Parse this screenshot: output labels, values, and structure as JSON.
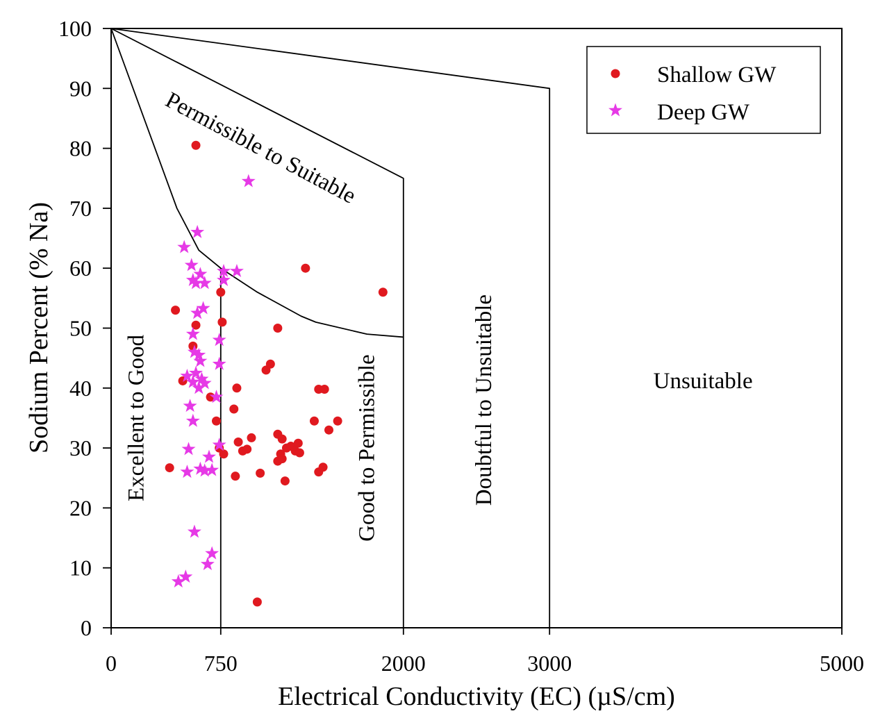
{
  "chart_data": {
    "type": "scatter",
    "title": "",
    "xlabel": "Electrical Conductivity (EC) (µS/cm)",
    "ylabel": "Sodium Percent (% Na)",
    "xlim": [
      0,
      5000
    ],
    "ylim": [
      0,
      100
    ],
    "x_ticks": [
      0,
      750,
      2000,
      3000,
      5000
    ],
    "x_tick_labels": [
      "0",
      "750",
      "2000",
      "3000",
      "5000"
    ],
    "y_ticks": [
      0,
      10,
      20,
      30,
      40,
      50,
      60,
      70,
      80,
      90,
      100
    ],
    "y_tick_labels": [
      "0",
      "10",
      "20",
      "30",
      "40",
      "50",
      "60",
      "70",
      "80",
      "90",
      "100"
    ],
    "grid": false,
    "legend_position": "top-right",
    "colors": {
      "shallow": "#e0191f",
      "deep": "#e639e6",
      "line": "#000000"
    },
    "boundaries": [
      {
        "name": "excellent-to-good-boundary",
        "points": [
          [
            0,
            100
          ],
          [
            150,
            90
          ],
          [
            300,
            80
          ],
          [
            450,
            70
          ],
          [
            600,
            63
          ],
          [
            750,
            60
          ],
          [
            1000,
            56
          ],
          [
            1300,
            52
          ],
          [
            1400,
            51
          ],
          [
            1750,
            49
          ],
          [
            2000,
            48.5
          ]
        ]
      },
      {
        "name": "good-to-permissible-boundary",
        "points": [
          [
            0,
            100
          ],
          [
            2000,
            75
          ],
          [
            2000,
            0
          ]
        ]
      },
      {
        "name": "permissible-to-doubtful-boundary",
        "points": [
          [
            0,
            100
          ],
          [
            3000,
            90
          ],
          [
            3000,
            0
          ]
        ]
      },
      {
        "name": "vertical-750-boundary",
        "points": [
          [
            750,
            60
          ],
          [
            750,
            0
          ]
        ]
      }
    ],
    "regions": [
      {
        "label": "Excellent to Good",
        "x": 220,
        "y": 35,
        "rotate": -90
      },
      {
        "label": "Good to Permissible",
        "x": 1800,
        "y": 30,
        "rotate": -90
      },
      {
        "label": "Permissible to Suitable",
        "x": 1000,
        "y": 79,
        "rotate": 28
      },
      {
        "label": "Doubtful to Unsuitable",
        "x": 2600,
        "y": 38,
        "rotate": -90
      },
      {
        "label": "Unsuitable",
        "x": 4050,
        "y": 40,
        "rotate": 0
      }
    ],
    "series": [
      {
        "name": "Shallow GW",
        "marker": "circle",
        "points": [
          [
            580,
            80.5
          ],
          [
            440,
            53
          ],
          [
            400,
            26.7
          ],
          [
            490,
            41.2
          ],
          [
            580,
            50.5
          ],
          [
            560,
            47
          ],
          [
            680,
            38.5
          ],
          [
            720,
            34.5
          ],
          [
            740,
            30
          ],
          [
            770,
            29
          ],
          [
            750,
            56
          ],
          [
            760,
            51
          ],
          [
            860,
            40
          ],
          [
            840,
            36.5
          ],
          [
            870,
            31
          ],
          [
            900,
            29.5
          ],
          [
            930,
            29.8
          ],
          [
            960,
            31.7
          ],
          [
            850,
            25.3
          ],
          [
            1000,
            4.3
          ],
          [
            1020,
            25.8
          ],
          [
            1060,
            43
          ],
          [
            1090,
            44
          ],
          [
            1140,
            50
          ],
          [
            1140,
            32.3
          ],
          [
            1170,
            31.5
          ],
          [
            1160,
            29
          ],
          [
            1140,
            27.8
          ],
          [
            1170,
            28.2
          ],
          [
            1190,
            24.5
          ],
          [
            1200,
            30
          ],
          [
            1230,
            30.3
          ],
          [
            1260,
            29.5
          ],
          [
            1280,
            30.8
          ],
          [
            1290,
            29.2
          ],
          [
            1330,
            60
          ],
          [
            1390,
            34.5
          ],
          [
            1420,
            39.8
          ],
          [
            1460,
            39.8
          ],
          [
            1420,
            26
          ],
          [
            1450,
            26.8
          ],
          [
            1490,
            33
          ],
          [
            1550,
            34.5
          ],
          [
            1860,
            56
          ]
        ]
      },
      {
        "name": "Deep GW",
        "marker": "star",
        "points": [
          [
            500,
            63.5
          ],
          [
            550,
            60.5
          ],
          [
            590,
            66
          ],
          [
            560,
            58
          ],
          [
            580,
            57.5
          ],
          [
            610,
            59
          ],
          [
            640,
            57.5
          ],
          [
            590,
            52.5
          ],
          [
            630,
            53.3
          ],
          [
            560,
            49
          ],
          [
            570,
            46
          ],
          [
            600,
            45.5
          ],
          [
            610,
            44.5
          ],
          [
            520,
            42
          ],
          [
            580,
            42.5
          ],
          [
            560,
            41
          ],
          [
            600,
            40
          ],
          [
            620,
            41.5
          ],
          [
            640,
            40.8
          ],
          [
            540,
            37
          ],
          [
            560,
            34.5
          ],
          [
            530,
            29.8
          ],
          [
            520,
            26
          ],
          [
            610,
            26.5
          ],
          [
            640,
            26.2
          ],
          [
            690,
            26.3
          ],
          [
            670,
            28.5
          ],
          [
            720,
            38.5
          ],
          [
            740,
            44
          ],
          [
            740,
            48
          ],
          [
            740,
            30.5
          ],
          [
            770,
            58
          ],
          [
            770,
            59.5
          ],
          [
            860,
            59.5
          ],
          [
            940,
            74.5
          ],
          [
            570,
            16
          ],
          [
            690,
            12.4
          ],
          [
            660,
            10.6
          ],
          [
            510,
            8.5
          ],
          [
            460,
            7.7
          ]
        ]
      }
    ]
  }
}
